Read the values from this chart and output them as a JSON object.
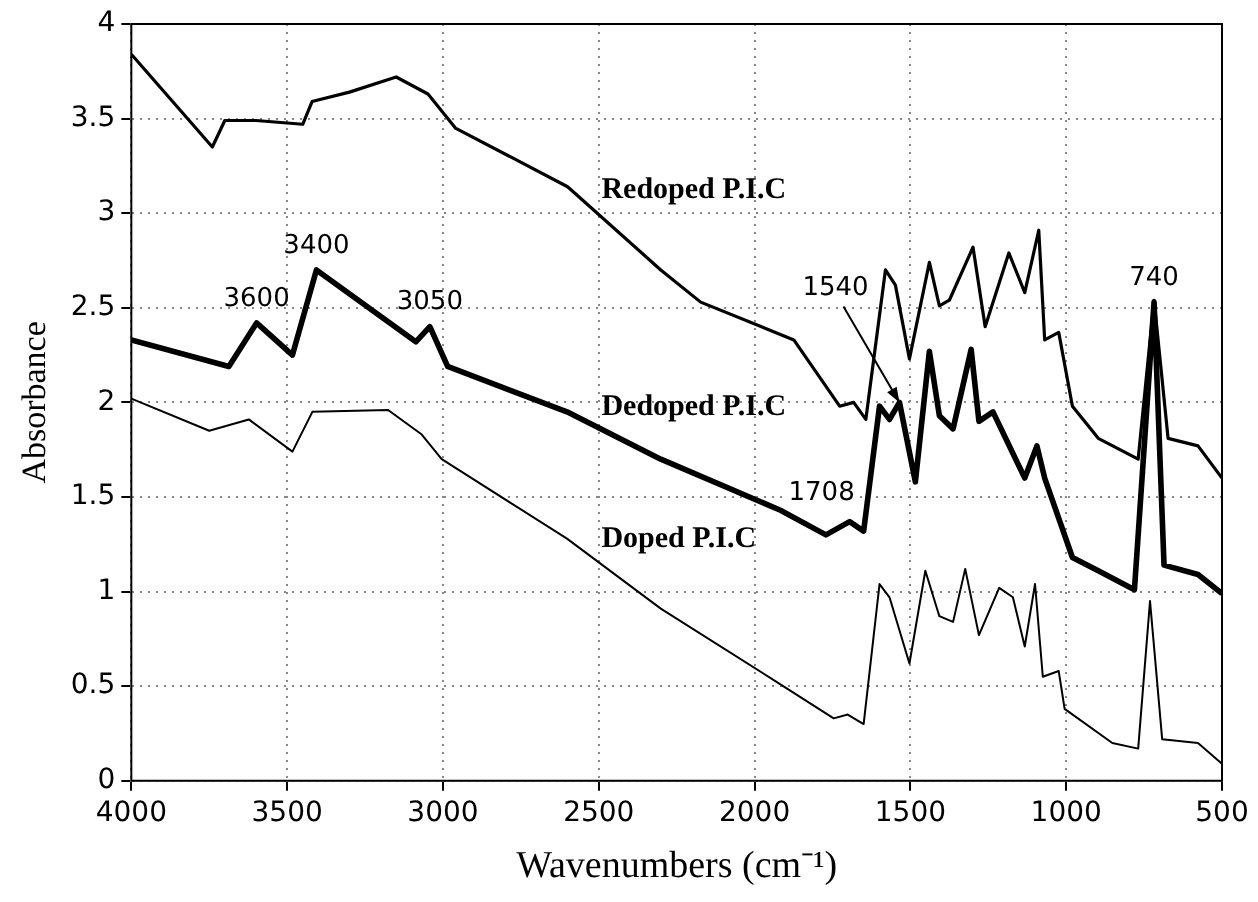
{
  "chart_data": {
    "type": "line",
    "xlabel": "Wavenumbers (cm⁻¹)",
    "ylabel": "Absorbance",
    "xlim": [
      4000,
      500
    ],
    "xticks": [
      4000,
      3500,
      3000,
      2500,
      2000,
      1500,
      1000,
      500
    ],
    "ylim": [
      0,
      4
    ],
    "yticks": [
      0,
      0.5,
      1,
      1.5,
      2,
      2.5,
      3,
      3.5,
      4
    ],
    "grid": true,
    "legend": false,
    "marker": "none",
    "line_style": "solid",
    "series": [
      {
        "name": "Redoped P.I.C",
        "color": "#000000",
        "x": [
          4000,
          3740,
          3700,
          3600,
          3450,
          3420,
          3300,
          3150,
          3048,
          2960,
          2600,
          2301,
          2173,
          1874,
          1727,
          1682,
          1643,
          1580,
          1548,
          1503,
          1439,
          1407,
          1375,
          1299,
          1260,
          1184,
          1133,
          1088,
          1069,
          1024,
          980,
          897,
          769,
          718,
          673,
          577,
          500
        ],
        "values": [
          3.84,
          3.35,
          3.49,
          3.49,
          3.47,
          3.59,
          3.64,
          3.72,
          3.63,
          3.45,
          3.14,
          2.7,
          2.53,
          2.33,
          1.98,
          2.0,
          1.91,
          2.7,
          2.62,
          2.23,
          2.74,
          2.51,
          2.54,
          2.82,
          2.4,
          2.79,
          2.58,
          2.91,
          2.33,
          2.37,
          1.98,
          1.81,
          1.7,
          2.54,
          1.81,
          1.77,
          1.6
        ]
      },
      {
        "name": "Dedoped P.I.C",
        "color": "#000000",
        "x": [
          4000,
          3687,
          3598,
          3483,
          3406,
          3087,
          3042,
          2985,
          2602,
          2301,
          1917,
          1771,
          1695,
          1650,
          1599,
          1567,
          1535,
          1484,
          1439,
          1407,
          1363,
          1305,
          1280,
          1235,
          1133,
          1094,
          1069,
          980,
          897,
          781,
          718,
          686,
          577,
          500
        ],
        "values": [
          2.33,
          2.19,
          2.42,
          2.25,
          2.7,
          2.32,
          2.4,
          2.19,
          1.95,
          1.7,
          1.43,
          1.3,
          1.37,
          1.32,
          1.98,
          1.91,
          2.0,
          1.58,
          2.27,
          1.93,
          1.86,
          2.28,
          1.9,
          1.95,
          1.6,
          1.77,
          1.6,
          1.18,
          1.11,
          1.01,
          2.53,
          1.14,
          1.09,
          0.99
        ]
      },
      {
        "name": "Doped P.I.C",
        "color": "#000000",
        "x": [
          4000,
          3750,
          3623,
          3483,
          3419,
          3176,
          3068,
          3004,
          2602,
          2301,
          1917,
          1746,
          1701,
          1650,
          1599,
          1567,
          1503,
          1452,
          1407,
          1363,
          1324,
          1280,
          1215,
          1171,
          1133,
          1100,
          1075,
          1024,
          1005,
          852,
          769,
          731,
          692,
          577,
          500
        ],
        "values": [
          2.02,
          1.85,
          1.91,
          1.74,
          1.95,
          1.96,
          1.83,
          1.7,
          1.28,
          0.91,
          0.51,
          0.33,
          0.35,
          0.3,
          1.04,
          0.97,
          0.62,
          1.11,
          0.87,
          0.84,
          1.12,
          0.77,
          1.02,
          0.97,
          0.71,
          1.04,
          0.55,
          0.58,
          0.38,
          0.2,
          0.17,
          0.95,
          0.22,
          0.2,
          0.09
        ]
      }
    ],
    "annotations": [
      {
        "text": "3600",
        "x": 3598,
        "y": 2.42
      },
      {
        "text": "3400",
        "x": 3406,
        "y": 2.7
      },
      {
        "text": "3050",
        "x": 3042,
        "y": 2.4
      },
      {
        "text": "1540",
        "x": 1535,
        "y": 2.0
      },
      {
        "text": "1708",
        "x": 1695,
        "y": 1.37
      },
      {
        "text": "740",
        "x": 718,
        "y": 2.53
      }
    ]
  }
}
